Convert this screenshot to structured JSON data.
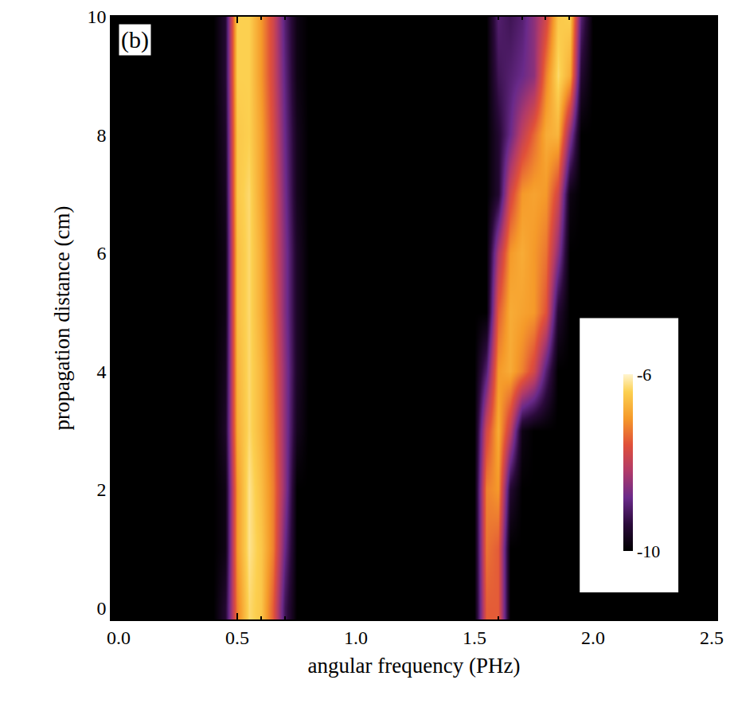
{
  "chart_data": {
    "type": "heatmap",
    "annotations": [
      "(b)"
    ],
    "x_label": "angular frequency (PHz)",
    "y_label": "propagation distance (cm)",
    "xlim": [
      -0.03,
      2.52
    ],
    "ylim": [
      -0.2,
      10
    ],
    "xticks": [
      {
        "value": 0,
        "label": "0.0"
      },
      0.5,
      {
        "value": 1,
        "label": "1.0"
      },
      1.5,
      {
        "value": 2,
        "label": "2.0"
      },
      2.5
    ],
    "yticks": [
      0,
      2,
      4,
      6,
      8,
      10
    ],
    "x": [
      0.4,
      0.45,
      0.5,
      0.55,
      0.6,
      0.65,
      0.7,
      0.75,
      0.8,
      0.85,
      0.9,
      0.95,
      1.0,
      1.05,
      1.1,
      1.15,
      1.2,
      1.25,
      1.3,
      1.35,
      1.4,
      1.45,
      1.5,
      1.55,
      1.6,
      1.65,
      1.7,
      1.75,
      1.8,
      1.85,
      1.9,
      1.95,
      2.0
    ],
    "y": [
      0,
      1,
      2,
      3,
      4,
      5,
      6,
      7,
      8,
      9,
      10
    ],
    "z": [
      [
        -10,
        -9.5,
        -7.2,
        -6.3,
        -6.5,
        -7.5,
        -9.2,
        -10,
        -10,
        -10,
        -10,
        -10,
        -10,
        -10,
        -10,
        -10,
        -10,
        -10,
        -10,
        -10,
        -10,
        -10,
        -10,
        -7.5,
        -7.5,
        -10,
        -10,
        -10,
        -10,
        -10,
        -10,
        -10,
        -10
      ],
      [
        -10,
        -9.8,
        -7.0,
        -6.2,
        -6.5,
        -7.2,
        -8.8,
        -10,
        -10,
        -10,
        -10,
        -10,
        -10,
        -10,
        -10,
        -10,
        -10,
        -10,
        -10,
        -10,
        -10,
        -10,
        -10,
        -7.3,
        -7.5,
        -10,
        -10,
        -10,
        -10,
        -10,
        -10,
        -10,
        -10
      ],
      [
        -10,
        -9.8,
        -7.0,
        -6.2,
        -6.6,
        -7.2,
        -8.5,
        -10,
        -10,
        -10,
        -10,
        -10,
        -10,
        -10,
        -10,
        -10,
        -10,
        -10,
        -10,
        -10,
        -10,
        -10,
        -10,
        -7.2,
        -7.0,
        -9.5,
        -10,
        -10,
        -10,
        -10,
        -10,
        -10,
        -10
      ],
      [
        -10,
        -9.6,
        -6.8,
        -6.3,
        -6.7,
        -7.3,
        -8.5,
        -9.7,
        -10,
        -10,
        -10,
        -10,
        -10,
        -10,
        -10,
        -10,
        -10,
        -10,
        -10,
        -10,
        -10,
        -10,
        -10,
        -7.8,
        -6.8,
        -8.0,
        -9.8,
        -10,
        -10,
        -10,
        -10,
        -10,
        -10
      ],
      [
        -10,
        -9.7,
        -6.7,
        -6.3,
        -6.7,
        -7.4,
        -8.5,
        -9.6,
        -10,
        -10,
        -10,
        -10,
        -10,
        -10,
        -10,
        -10,
        -10,
        -10,
        -10,
        -10,
        -10,
        -10,
        -10,
        -9.0,
        -7.0,
        -6.8,
        -7.2,
        -7.8,
        -9.0,
        -10,
        -10,
        -10,
        -10
      ],
      [
        -10,
        -9.8,
        -6.6,
        -6.3,
        -6.8,
        -7.5,
        -8.6,
        -9.6,
        -10,
        -10,
        -10,
        -10,
        -10,
        -10,
        -10,
        -10,
        -10,
        -10,
        -10,
        -10,
        -10,
        -10,
        -10,
        -10,
        -7.5,
        -6.8,
        -6.9,
        -7.0,
        -7.6,
        -9.5,
        -10,
        -10,
        -10
      ],
      [
        -10,
        -9.8,
        -6.6,
        -6.3,
        -6.8,
        -7.6,
        -8.6,
        -9.6,
        -10,
        -10,
        -10,
        -10,
        -10,
        -10,
        -10,
        -10,
        -10,
        -10,
        -10,
        -10,
        -10,
        -10,
        -10,
        -10,
        -8.2,
        -7.0,
        -6.8,
        -7.0,
        -7.3,
        -8.5,
        -10,
        -10,
        -10
      ],
      [
        -10,
        -9.7,
        -6.5,
        -6.3,
        -6.9,
        -7.6,
        -8.7,
        -9.7,
        -10,
        -10,
        -10,
        -10,
        -10,
        -10,
        -10,
        -10,
        -10,
        -10,
        -10,
        -10,
        -10,
        -10,
        -10,
        -10,
        -9.5,
        -7.8,
        -7.0,
        -6.9,
        -7.0,
        -7.8,
        -9.8,
        -10,
        -10
      ],
      [
        -10,
        -9.6,
        -6.5,
        -6.4,
        -6.9,
        -7.7,
        -8.8,
        -9.7,
        -10,
        -10,
        -10,
        -10,
        -10,
        -10,
        -10,
        -10,
        -10,
        -10,
        -10,
        -10,
        -10,
        -10,
        -10,
        -10,
        -9.5,
        -8.8,
        -8.0,
        -7.4,
        -6.8,
        -6.7,
        -8.5,
        -10,
        -10
      ],
      [
        -10,
        -9.5,
        -6.4,
        -6.4,
        -7.0,
        -7.8,
        -8.9,
        -9.8,
        -10,
        -10,
        -10,
        -10,
        -10,
        -10,
        -10,
        -10,
        -10,
        -10,
        -10,
        -10,
        -10,
        -10,
        -10,
        -10,
        -9.2,
        -9.0,
        -8.8,
        -8.5,
        -7.2,
        -6.3,
        -6.8,
        -9.5,
        -10
      ],
      [
        -10,
        -9.5,
        -6.4,
        -6.4,
        -7.0,
        -7.8,
        -9.0,
        -9.8,
        -10,
        -10,
        -10,
        -10,
        -10,
        -10,
        -10,
        -10,
        -10,
        -10,
        -10,
        -10,
        -10,
        -10,
        -10,
        -10,
        -9.0,
        -9.2,
        -9.0,
        -8.5,
        -7.8,
        -6.5,
        -6.4,
        -9.0,
        -10
      ]
    ],
    "color_range": [
      -10,
      -6
    ],
    "color_ticks": [
      -10,
      -6
    ]
  }
}
